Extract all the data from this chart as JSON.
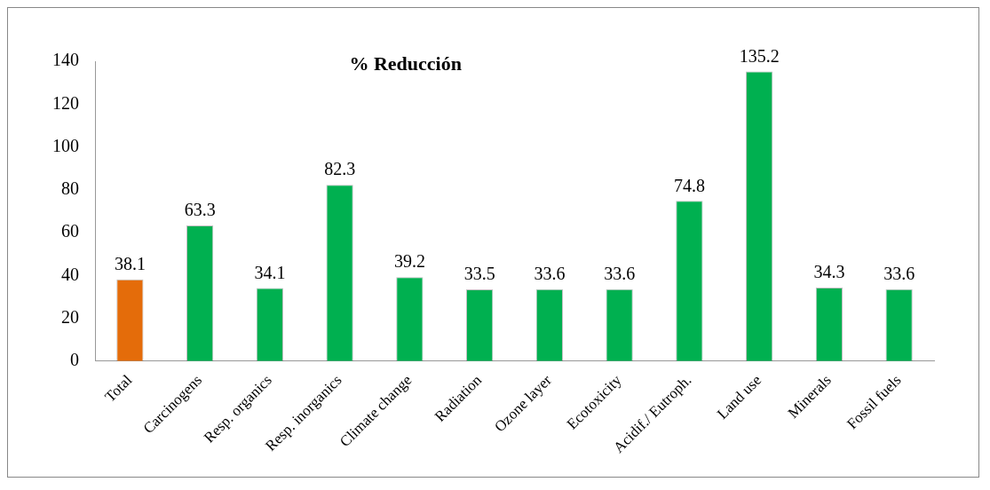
{
  "chart_data": {
    "type": "bar",
    "title": "% Reducción",
    "categories": [
      "Total",
      "Carcinogens",
      "Resp. organics",
      "Resp. inorganics",
      "Climate change",
      "Radiation",
      "Ozone layer",
      "Ecotoxicity",
      "Acidif./ Eutroph.",
      "Land use",
      "Minerals",
      "Fossil fuels"
    ],
    "values": [
      38.1,
      63.3,
      34.1,
      82.3,
      39.2,
      33.5,
      33.6,
      33.6,
      74.8,
      135.2,
      34.3,
      33.6
    ],
    "colors": [
      "#e46c0a",
      "#00b050",
      "#00b050",
      "#00b050",
      "#00b050",
      "#00b050",
      "#00b050",
      "#00b050",
      "#00b050",
      "#00b050",
      "#00b050",
      "#00b050"
    ],
    "ylim": [
      0,
      140
    ],
    "yticks": [
      0,
      20,
      40,
      60,
      80,
      100,
      120,
      140
    ],
    "grid": false,
    "legend": false,
    "data_labels": true
  }
}
